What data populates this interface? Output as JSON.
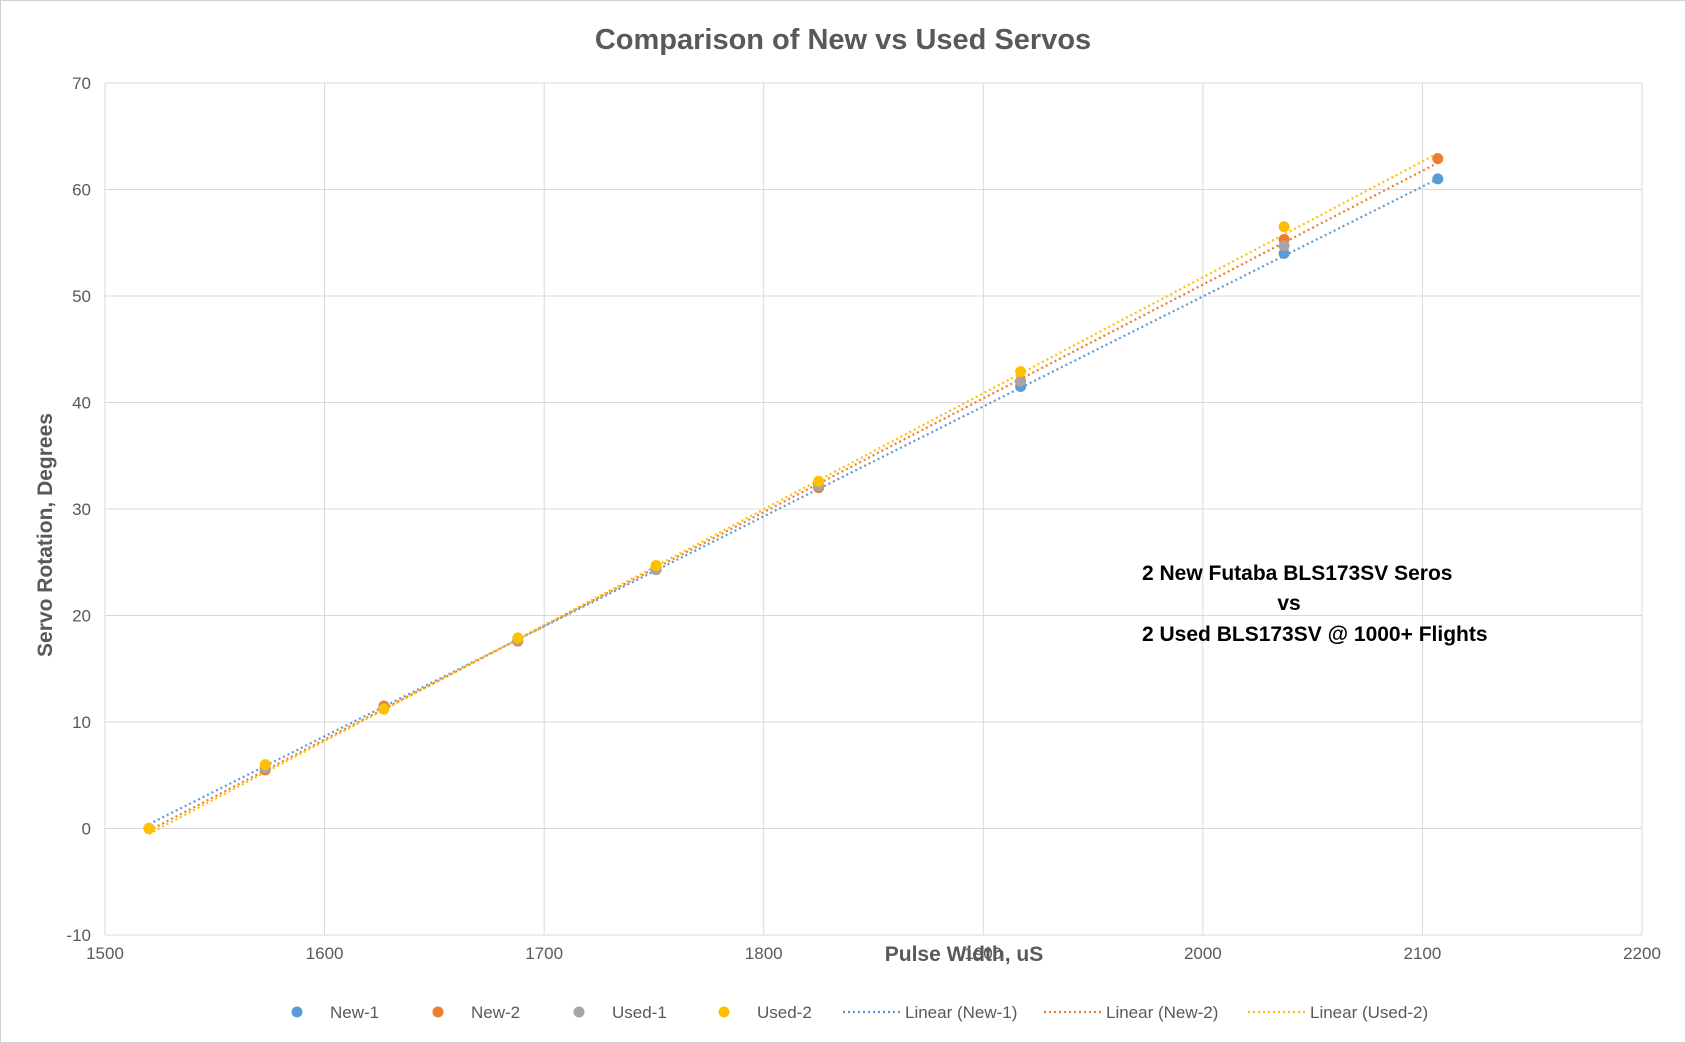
{
  "chart_data": {
    "type": "scatter",
    "title": "Comparison of New vs Used Servos",
    "xlabel": "Pulse Width, uS",
    "ylabel": "Servo Rotation, Degrees",
    "xlim": [
      1500,
      2200
    ],
    "ylim": [
      -10,
      70
    ],
    "x_ticks": [
      1500,
      1600,
      1700,
      1800,
      1900,
      2000,
      2100,
      2200
    ],
    "y_ticks": [
      -10,
      0,
      10,
      20,
      30,
      40,
      50,
      60,
      70
    ],
    "grid": true,
    "legend_position": "bottom",
    "annotation": [
      "2 New Futaba BLS173SV Seros",
      "vs",
      "2 Used BLS173SV @ 1000+ Flights"
    ],
    "series": [
      {
        "name": "New-1",
        "color": "#5b9bd5",
        "points": [
          [
            1520,
            0
          ],
          [
            1573,
            5.6
          ],
          [
            1627,
            11.4
          ],
          [
            1688,
            17.6
          ],
          [
            1751,
            24.4
          ],
          [
            1825,
            32.2
          ],
          [
            1917,
            41.5
          ],
          [
            2037,
            54.0
          ],
          [
            2107,
            61.0
          ]
        ],
        "trendline": {
          "name": "Linear (New-1)",
          "from": [
            1520,
            0.4
          ],
          "to": [
            2107,
            61.0
          ]
        }
      },
      {
        "name": "New-2",
        "color": "#ed7d31",
        "points": [
          [
            1520,
            0
          ],
          [
            1573,
            5.5
          ],
          [
            1627,
            11.5
          ],
          [
            1688,
            17.6
          ],
          [
            1751,
            24.5
          ],
          [
            1825,
            32.0
          ],
          [
            1917,
            42.0
          ],
          [
            2037,
            55.3
          ],
          [
            2107,
            62.9
          ]
        ],
        "trendline": {
          "name": "Linear (New-2)",
          "from": [
            1520,
            -0.2
          ],
          "to": [
            2107,
            62.5
          ]
        }
      },
      {
        "name": "Used-1",
        "color": "#a5a5a5",
        "points": [
          [
            1520,
            0
          ],
          [
            1573,
            5.7
          ],
          [
            1627,
            11.3
          ],
          [
            1688,
            17.7
          ],
          [
            1751,
            24.3
          ],
          [
            1825,
            32.2
          ],
          [
            1917,
            42.0
          ],
          [
            2037,
            54.7
          ]
        ]
      },
      {
        "name": "Used-2",
        "color": "#ffc000",
        "points": [
          [
            1520,
            0
          ],
          [
            1573,
            6.0
          ],
          [
            1627,
            11.2
          ],
          [
            1688,
            17.9
          ],
          [
            1751,
            24.7
          ],
          [
            1825,
            32.6
          ],
          [
            1917,
            42.9
          ],
          [
            2037,
            56.5
          ]
        ],
        "trendline": {
          "name": "Linear (Used-2)",
          "from": [
            1520,
            -0.5
          ],
          "to": [
            2107,
            63.4
          ]
        }
      }
    ]
  }
}
